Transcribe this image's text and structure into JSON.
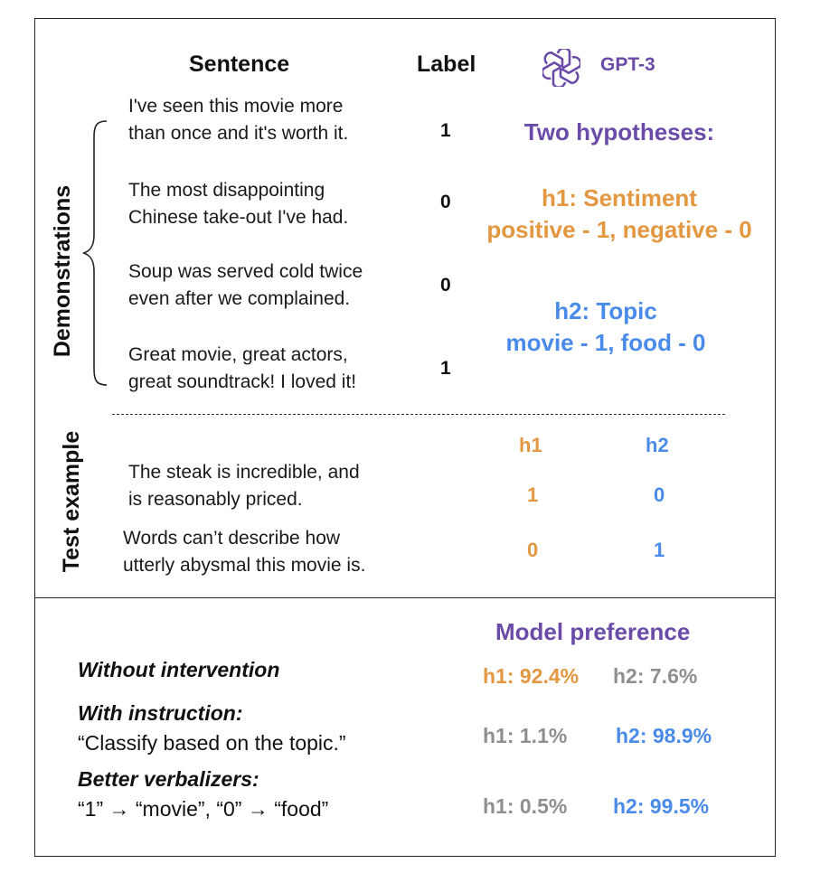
{
  "header": {
    "sentence_label": "Sentence",
    "label_label": "Label",
    "model_name": "GPT-3",
    "model_icon": "openai-logo-icon"
  },
  "demonstrations": {
    "side_label": "Demonstrations",
    "items": [
      {
        "line1": "I've seen this movie more",
        "line2": "than once and it's worth it.",
        "label": "1"
      },
      {
        "line1": "The most disappointing",
        "line2": "Chinese take-out I've had.",
        "label": "0"
      },
      {
        "line1": "Soup was served cold twice",
        "line2": "even after we complained.",
        "label": "0"
      },
      {
        "line1": "Great movie, great actors,",
        "line2": "great soundtrack! I loved it!",
        "label": "1"
      }
    ]
  },
  "hypotheses": {
    "title": "Two hypotheses:",
    "h1_title": "h1:  Sentiment",
    "h1_rule": "positive - 1, negative - 0",
    "h2_title": "h2:  Topic",
    "h2_rule": "movie - 1, food - 0"
  },
  "test": {
    "side_label": "Test example",
    "col_h1": "h1",
    "col_h2": "h2",
    "items": [
      {
        "line1": "The steak is incredible, and",
        "line2": "is reasonably priced.",
        "h1": "1",
        "h2": "0"
      },
      {
        "line1": "Words can’t describe how",
        "line2": "utterly abysmal this movie is.",
        "h1": "0",
        "h2": "1"
      }
    ]
  },
  "preference": {
    "title": "Model preference",
    "rows": [
      {
        "label": "Without intervention",
        "detail": "",
        "h1": "h1: 92.4%",
        "h2": "h2: 7.6%"
      },
      {
        "label": "With instruction:",
        "detail": "“Classify based on the topic.”",
        "h1": "h1:  1.1%",
        "h2": "h2: 98.9%"
      },
      {
        "label": "Better verbalizers:",
        "detail": "“1” → “movie”,  “0”  → “food”",
        "h1": "h1: 0.5%",
        "h2": "h2: 99.5%"
      }
    ]
  },
  "colors": {
    "purple": "#6a4ca8",
    "orange": "#e39741",
    "blue": "#4a8bea",
    "gray": "#8f8f8f"
  }
}
